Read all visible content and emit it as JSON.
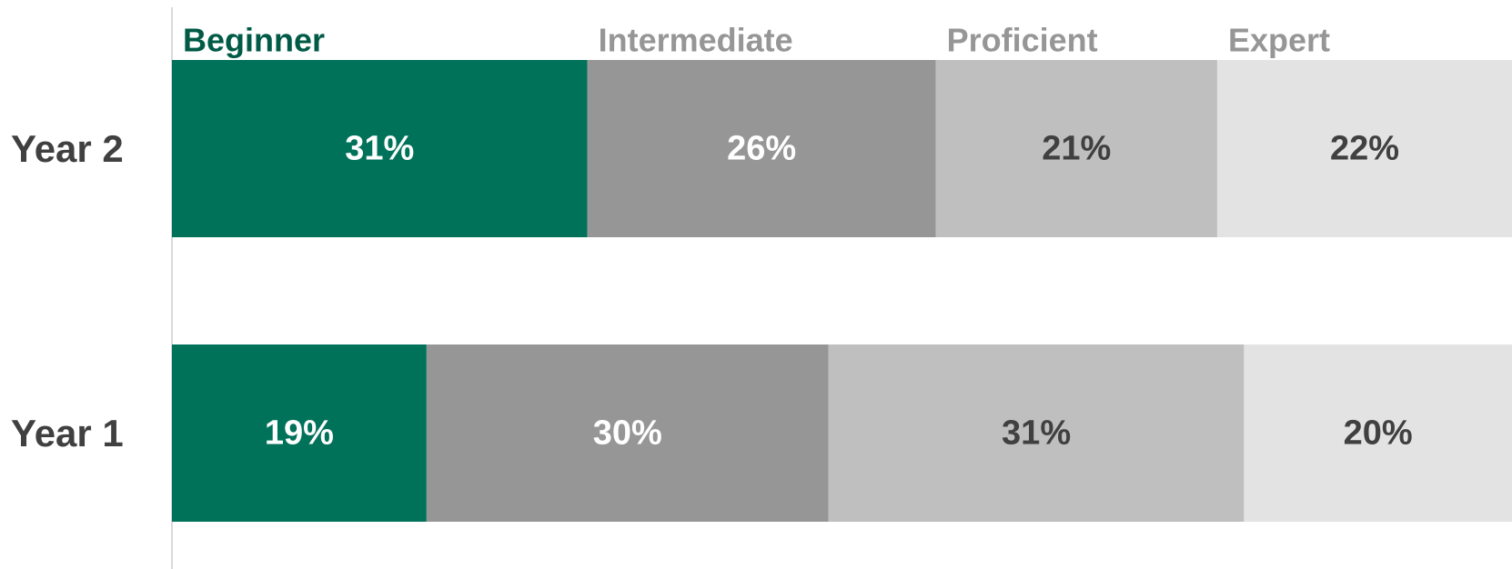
{
  "chart_data": {
    "type": "stacked-bar-horizontal",
    "categories": [
      "Year 2",
      "Year 1"
    ],
    "xlim": [
      0,
      100
    ],
    "series": [
      {
        "name": "Beginner",
        "color": "#00725a",
        "legend_color": "#005a46",
        "label_color": "#ffffff",
        "values": [
          31,
          19
        ],
        "value_labels": [
          "31%",
          "19%"
        ]
      },
      {
        "name": "Intermediate",
        "color": "#969696",
        "legend_color": "#969696",
        "label_color": "#ffffff",
        "values": [
          26,
          30
        ],
        "value_labels": [
          "26%",
          "30%"
        ]
      },
      {
        "name": "Proficient",
        "color": "#bfbfbf",
        "legend_color": "#969696",
        "label_color": "#404040",
        "values": [
          21,
          31
        ],
        "value_labels": [
          "21%",
          "31%"
        ]
      },
      {
        "name": "Expert",
        "color": "#e3e3e3",
        "legend_color": "#969696",
        "label_color": "#404040",
        "values": [
          22,
          20
        ],
        "value_labels": [
          "22%",
          "20%"
        ]
      }
    ]
  }
}
